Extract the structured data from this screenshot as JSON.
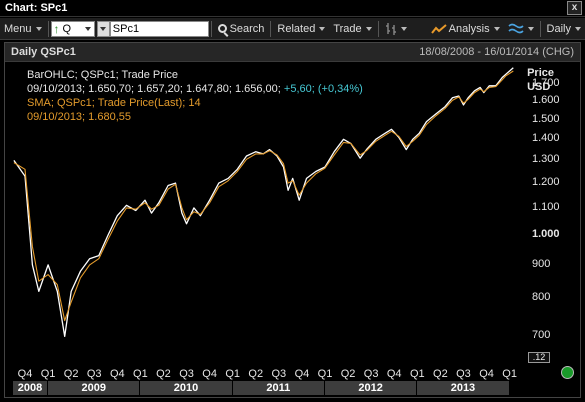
{
  "window": {
    "title": "Chart: SPc1",
    "close_glyph": "x"
  },
  "toolbar": {
    "menu_label": "Menu",
    "query_type": "Q",
    "symbol_value": "SPc1",
    "search_label": "Search",
    "related_label": "Related",
    "trade_label": "Trade",
    "analysis_label": "Analysis",
    "interval_label": "Daily",
    "icons": [
      "up-arrow-icon",
      "chevron-down-icon",
      "search-icon",
      "bar-style-icon",
      "analysis-icon",
      "wave-icon"
    ]
  },
  "chart_header": {
    "title": "Daily QSPc1",
    "range": "18/08/2008 - 16/01/2014 (CHG)"
  },
  "legend": {
    "bar_series": "BarOHLC; QSPc1; Trade Price",
    "bar_values": "09/10/2013; 1.650,70; 1.657,20; 1.647,80; 1.656,00;",
    "bar_change": "+5,60; (+0,34%)",
    "sma_series": "SMA; QSPc1; Trade Price(Last);  14",
    "sma_values": "09/10/2013; 1.680,55"
  },
  "axis": {
    "label_line1": "Price",
    "label_line2": "USD",
    "scale_button": ".12"
  },
  "colors": {
    "price": "#ffffff",
    "sma": "#e39b2c",
    "change": "#46c8d4",
    "status_ok": "#1a9a2a"
  },
  "chart_data": {
    "type": "line",
    "title": "Daily QSPc1",
    "x_range": [
      "18/08/2008",
      "16/01/2014"
    ],
    "ylabel": "Price USD",
    "y_scale": "log",
    "ylim": [
      665,
      1780
    ],
    "yticks": [
      {
        "value": 1700,
        "label": "1.700",
        "bold": false
      },
      {
        "value": 1600,
        "label": "1.600",
        "bold": false
      },
      {
        "value": 1500,
        "label": "1.500",
        "bold": false
      },
      {
        "value": 1400,
        "label": "1.400",
        "bold": false
      },
      {
        "value": 1300,
        "label": "1.300",
        "bold": false
      },
      {
        "value": 1200,
        "label": "1.200",
        "bold": false
      },
      {
        "value": 1100,
        "label": "1.100",
        "bold": false
      },
      {
        "value": 1000,
        "label": "1.000",
        "bold": true
      },
      {
        "value": 900,
        "label": "900",
        "bold": false
      },
      {
        "value": 800,
        "label": "800",
        "bold": false
      },
      {
        "value": 700,
        "label": "700",
        "bold": false
      }
    ],
    "quarter_ticks": [
      "Q4",
      "Q1",
      "Q2",
      "Q3",
      "Q4",
      "Q1",
      "Q2",
      "Q3",
      "Q4",
      "Q1",
      "Q2",
      "Q3",
      "Q4",
      "Q1",
      "Q2",
      "Q3",
      "Q4",
      "Q1",
      "Q2",
      "Q3",
      "Q4",
      "Q1"
    ],
    "years": [
      "2008",
      "2009",
      "2010",
      "2011",
      "2012",
      "2013"
    ],
    "series": [
      {
        "name": "BarOHLC; QSPc1; Trade Price",
        "x": [
          2008.63,
          2008.75,
          2008.83,
          2008.9,
          2009.0,
          2009.1,
          2009.18,
          2009.25,
          2009.35,
          2009.45,
          2009.55,
          2009.65,
          2009.75,
          2009.85,
          2009.95,
          2010.05,
          2010.12,
          2010.2,
          2010.3,
          2010.38,
          2010.45,
          2010.5,
          2010.58,
          2010.65,
          2010.75,
          2010.85,
          2010.95,
          2011.05,
          2011.15,
          2011.25,
          2011.33,
          2011.4,
          2011.48,
          2011.55,
          2011.6,
          2011.65,
          2011.72,
          2011.8,
          2011.9,
          2012.0,
          2012.1,
          2012.2,
          2012.28,
          2012.38,
          2012.45,
          2012.55,
          2012.65,
          2012.72,
          2012.8,
          2012.88,
          2012.95,
          2013.02,
          2013.1,
          2013.2,
          2013.3,
          2013.38,
          2013.45,
          2013.5,
          2013.55,
          2013.62,
          2013.68,
          2013.72,
          2013.78,
          2013.85,
          2013.92,
          2013.96,
          2014.04
        ],
        "values": [
          1300,
          1230,
          900,
          820,
          900,
          820,
          700,
          820,
          880,
          920,
          930,
          1000,
          1070,
          1110,
          1090,
          1130,
          1080,
          1120,
          1190,
          1200,
          1080,
          1040,
          1100,
          1070,
          1130,
          1200,
          1220,
          1260,
          1320,
          1340,
          1330,
          1350,
          1320,
          1270,
          1170,
          1220,
          1130,
          1220,
          1250,
          1270,
          1340,
          1400,
          1380,
          1310,
          1350,
          1400,
          1430,
          1450,
          1410,
          1350,
          1400,
          1430,
          1490,
          1530,
          1570,
          1620,
          1630,
          1580,
          1620,
          1660,
          1680,
          1650,
          1690,
          1690,
          1740,
          1760,
          1800
        ]
      },
      {
        "name": "SMA; QSPc1; Trade Price(Last)",
        "x": [
          2008.63,
          2008.75,
          2008.83,
          2008.9,
          2009.0,
          2009.1,
          2009.18,
          2009.25,
          2009.35,
          2009.45,
          2009.55,
          2009.65,
          2009.75,
          2009.85,
          2009.95,
          2010.05,
          2010.12,
          2010.2,
          2010.3,
          2010.38,
          2010.45,
          2010.5,
          2010.58,
          2010.65,
          2010.75,
          2010.85,
          2010.95,
          2011.05,
          2011.15,
          2011.25,
          2011.33,
          2011.4,
          2011.48,
          2011.55,
          2011.6,
          2011.65,
          2011.72,
          2011.8,
          2011.9,
          2012.0,
          2012.1,
          2012.2,
          2012.28,
          2012.38,
          2012.45,
          2012.55,
          2012.65,
          2012.72,
          2012.8,
          2012.88,
          2012.95,
          2013.02,
          2013.1,
          2013.2,
          2013.3,
          2013.38,
          2013.45,
          2013.5,
          2013.55,
          2013.62,
          2013.68,
          2013.72,
          2013.78,
          2013.85,
          2013.92,
          2013.96,
          2014.04
        ],
        "values": [
          1290,
          1260,
          960,
          850,
          870,
          840,
          740,
          790,
          860,
          900,
          920,
          985,
          1050,
          1100,
          1095,
          1120,
          1095,
          1110,
          1175,
          1195,
          1100,
          1055,
          1085,
          1075,
          1120,
          1185,
          1210,
          1250,
          1305,
          1330,
          1330,
          1345,
          1325,
          1285,
          1200,
          1210,
          1150,
          1200,
          1240,
          1265,
          1325,
          1385,
          1380,
          1325,
          1345,
          1390,
          1420,
          1440,
          1415,
          1365,
          1390,
          1420,
          1475,
          1520,
          1560,
          1605,
          1625,
          1590,
          1610,
          1650,
          1670,
          1655,
          1680,
          1685,
          1725,
          1750,
          1780
        ]
      }
    ]
  }
}
